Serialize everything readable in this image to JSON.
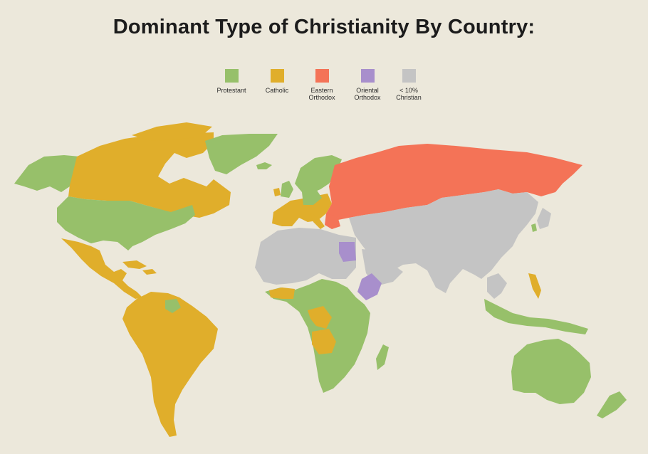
{
  "title": "Dominant Type of Christianity By Country:",
  "legend": [
    {
      "key": "protestant",
      "label": "Protestant",
      "color": "#97c06a"
    },
    {
      "key": "catholic",
      "label": "Catholic",
      "color": "#e0ae2b"
    },
    {
      "key": "eastern_orthodox",
      "label": "Eastern\nOrthodox",
      "color": "#f47357"
    },
    {
      "key": "oriental_orthodox",
      "label": "Oriental\nOrthodox",
      "color": "#a88fcc"
    },
    {
      "key": "under_10",
      "label": "< 10%\nChristian",
      "color": "#c4c4c4"
    }
  ],
  "background_color": "#ece8db"
}
